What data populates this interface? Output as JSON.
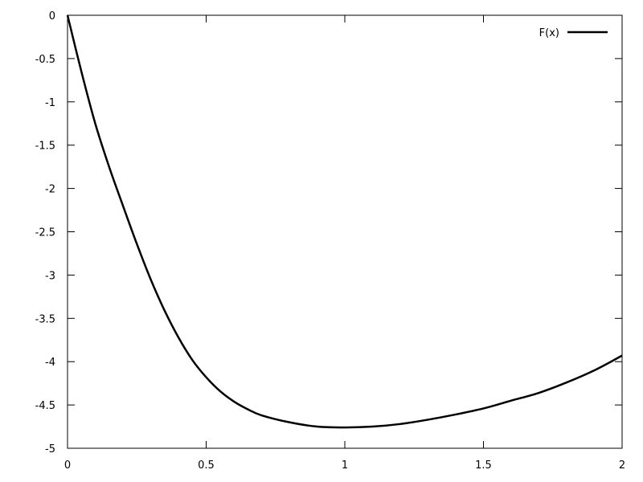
{
  "chart_data": {
    "type": "line",
    "title": "",
    "xlabel": "",
    "ylabel": "",
    "xlim": [
      0,
      2
    ],
    "ylim": [
      -5,
      0
    ],
    "grid": false,
    "legend_position": "top-right",
    "x_ticks": [
      "0",
      "0.5",
      "1",
      "1.5",
      "2"
    ],
    "y_ticks": [
      "0",
      "-0.5",
      "-1",
      "-1.5",
      "-2",
      "-2.5",
      "-3",
      "-3.5",
      "-4",
      "-4.5",
      "-5"
    ],
    "series": [
      {
        "name": "F(x)",
        "color": "#000000",
        "x": [
          0,
          0.05,
          0.1,
          0.15,
          0.2,
          0.25,
          0.3,
          0.35,
          0.4,
          0.45,
          0.5,
          0.55,
          0.6,
          0.65,
          0.7,
          0.8,
          0.9,
          1.0,
          1.1,
          1.2,
          1.3,
          1.4,
          1.5,
          1.6,
          1.7,
          1.8,
          1.9,
          2.0
        ],
        "y": [
          0,
          -0.65,
          -1.25,
          -1.75,
          -2.2,
          -2.64,
          -3.05,
          -3.41,
          -3.72,
          -3.98,
          -4.18,
          -4.34,
          -4.46,
          -4.55,
          -4.62,
          -4.7,
          -4.75,
          -4.76,
          -4.75,
          -4.72,
          -4.67,
          -4.61,
          -4.54,
          -4.45,
          -4.36,
          -4.24,
          -4.1,
          -3.93
        ]
      }
    ]
  }
}
